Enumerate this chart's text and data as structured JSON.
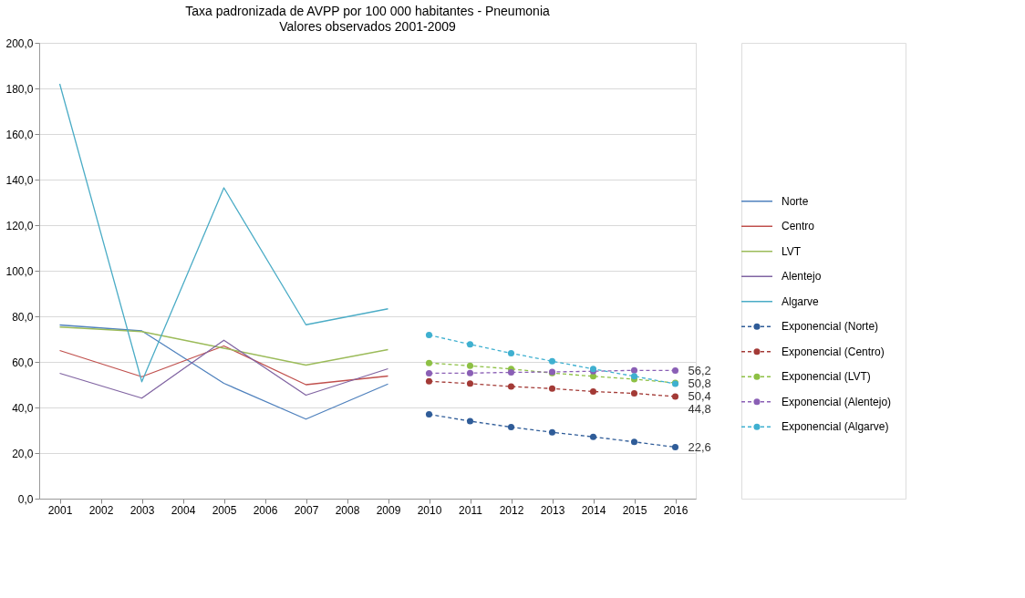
{
  "chart_data": {
    "type": "line",
    "title": "Taxa padronizada de AVPP por 100 000 habitantes - Pneumonia",
    "subtitle": "Valores observados 2001-2009",
    "categories": [
      "2001",
      "2002",
      "2003",
      "2004",
      "2005",
      "2006",
      "2007",
      "2008",
      "2009",
      "2010",
      "2011",
      "2012",
      "2013",
      "2014",
      "2015",
      "2016"
    ],
    "series": [
      {
        "name": "Norte",
        "color": "#4f81bd",
        "line_style": "solid",
        "marker": "none",
        "values": [
          76.2,
          null,
          73.6,
          null,
          50.6,
          null,
          34.9,
          null,
          50.3,
          null,
          null,
          null,
          null,
          null,
          null,
          null
        ]
      },
      {
        "name": "Centro",
        "color": "#c0504d",
        "line_style": "solid",
        "marker": "none",
        "values": [
          65.0,
          null,
          53.5,
          null,
          67.0,
          null,
          50.0,
          null,
          53.8,
          null,
          null,
          null,
          null,
          null,
          null,
          null
        ]
      },
      {
        "name": "LVT",
        "color": "#9bbb59",
        "line_style": "solid",
        "marker": "none",
        "values": [
          75.3,
          null,
          73.3,
          null,
          66.0,
          null,
          58.6,
          null,
          65.4,
          null,
          null,
          null,
          null,
          null,
          null,
          null
        ]
      },
      {
        "name": "Alentejo",
        "color": "#8064a2",
        "line_style": "solid",
        "marker": "none",
        "values": [
          55.0,
          null,
          44.1,
          null,
          69.5,
          null,
          45.4,
          null,
          57.0,
          null,
          null,
          null,
          null,
          null,
          null,
          null
        ]
      },
      {
        "name": "Algarve",
        "color": "#4bacc6",
        "line_style": "solid",
        "marker": "none",
        "values": [
          182.0,
          null,
          51.3,
          null,
          136.4,
          null,
          76.3,
          null,
          83.3,
          null,
          null,
          null,
          null,
          null,
          null,
          null
        ]
      },
      {
        "name": "Exponencial (Norte)",
        "color": "#2f5c98",
        "line_style": "dashed",
        "marker": "circle",
        "values": [
          null,
          null,
          null,
          null,
          null,
          null,
          null,
          null,
          null,
          37.0,
          34.0,
          31.4,
          29.1,
          27.1,
          24.9,
          22.6
        ],
        "value_labels": [
          null,
          null,
          null,
          null,
          null,
          null,
          null,
          null,
          null,
          null,
          null,
          null,
          null,
          null,
          null,
          "22,6"
        ]
      },
      {
        "name": "Exponencial (Centro)",
        "color": "#a33a36",
        "line_style": "dashed",
        "marker": "circle",
        "values": [
          null,
          null,
          null,
          null,
          null,
          null,
          null,
          null,
          null,
          51.5,
          50.5,
          49.2,
          48.3,
          47.0,
          46.2,
          44.8
        ],
        "value_labels": [
          null,
          null,
          null,
          null,
          null,
          null,
          null,
          null,
          null,
          null,
          null,
          null,
          null,
          null,
          null,
          "44,8"
        ]
      },
      {
        "name": "Exponencial (LVT)",
        "color": "#8dc044",
        "line_style": "dashed",
        "marker": "circle",
        "values": [
          null,
          null,
          null,
          null,
          null,
          null,
          null,
          null,
          null,
          59.5,
          58.3,
          56.9,
          55.1,
          53.7,
          52.4,
          50.8
        ],
        "value_labels": [
          null,
          null,
          null,
          null,
          null,
          null,
          null,
          null,
          null,
          null,
          null,
          null,
          null,
          null,
          null,
          "50,8"
        ]
      },
      {
        "name": "Exponencial (Alentejo)",
        "color": "#8a5fb5",
        "line_style": "dashed",
        "marker": "circle",
        "values": [
          null,
          null,
          null,
          null,
          null,
          null,
          null,
          null,
          null,
          55.0,
          55.1,
          55.4,
          55.6,
          55.9,
          56.3,
          56.2
        ],
        "value_labels": [
          null,
          null,
          null,
          null,
          null,
          null,
          null,
          null,
          null,
          null,
          null,
          null,
          null,
          null,
          null,
          "56,2"
        ]
      },
      {
        "name": "Exponencial (Algarve)",
        "color": "#3fb0d0",
        "line_style": "dashed",
        "marker": "circle",
        "values": [
          null,
          null,
          null,
          null,
          null,
          null,
          null,
          null,
          null,
          71.8,
          67.7,
          63.8,
          60.3,
          56.9,
          53.7,
          50.4
        ],
        "value_labels": [
          null,
          null,
          null,
          null,
          null,
          null,
          null,
          null,
          null,
          null,
          null,
          null,
          null,
          null,
          null,
          "50,4"
        ]
      }
    ],
    "ylim": [
      0,
      200
    ],
    "yticks": [
      {
        "value": 0,
        "label": "0,0"
      },
      {
        "value": 20,
        "label": "20,0"
      },
      {
        "value": 40,
        "label": "40,0"
      },
      {
        "value": 60,
        "label": "60,0"
      },
      {
        "value": 80,
        "label": "80,0"
      },
      {
        "value": 100,
        "label": "100,0"
      },
      {
        "value": 120,
        "label": "120,0"
      },
      {
        "value": 140,
        "label": "140,0"
      },
      {
        "value": 160,
        "label": "160,0"
      },
      {
        "value": 180,
        "label": "180,0"
      },
      {
        "value": 200,
        "label": "200,0"
      }
    ],
    "grid": "y",
    "legend": "right"
  }
}
